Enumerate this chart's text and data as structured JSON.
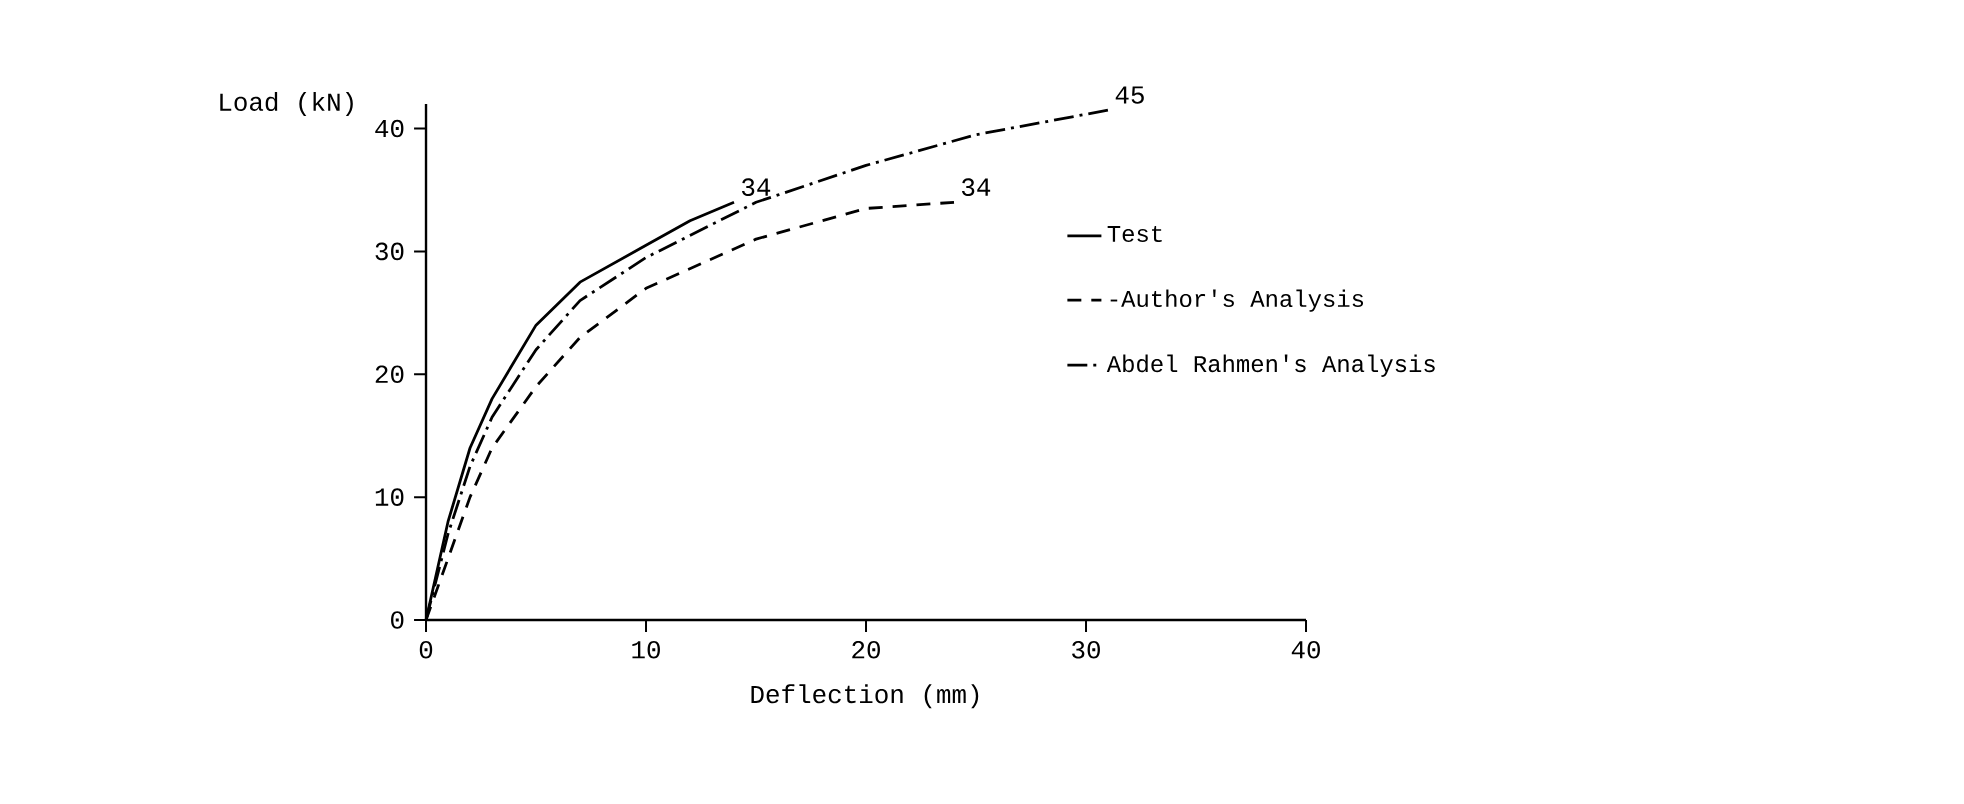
{
  "chart_data": {
    "type": "line",
    "xlabel": "Deflection (mm)",
    "ylabel": "Load (kN)",
    "xlim": [
      0,
      40
    ],
    "ylim": [
      0,
      42
    ],
    "xticks": [
      0,
      10,
      20,
      30,
      40
    ],
    "yticks": [
      0,
      10,
      20,
      30,
      40
    ],
    "grid": false,
    "legend": "right",
    "series": [
      {
        "name": "Test",
        "color": "#000000",
        "line_style": "solid",
        "x": [
          0,
          1,
          2,
          3,
          5,
          7,
          10,
          12,
          14
        ],
        "values": [
          0,
          8,
          14,
          18,
          24,
          27.5,
          30.5,
          32.5,
          34
        ]
      },
      {
        "name": "-Author's Analysis",
        "color": "#000000",
        "line_style": "dashed",
        "x": [
          0,
          1,
          2,
          3,
          5,
          7,
          10,
          15,
          20,
          24
        ],
        "values": [
          0,
          5,
          10,
          14,
          19,
          23,
          27,
          31,
          33.5,
          34
        ]
      },
      {
        "name": "Abdel Rahmen's Analysis",
        "color": "#000000",
        "line_style": "dashdotted",
        "x": [
          0,
          1,
          2,
          3,
          5,
          7,
          10,
          15,
          20,
          25,
          31
        ],
        "values": [
          0,
          7,
          12.5,
          16.5,
          22,
          26,
          29.5,
          34,
          37,
          39.5,
          41.5
        ]
      }
    ],
    "annotations": [
      "34",
      "34",
      "45"
    ]
  }
}
